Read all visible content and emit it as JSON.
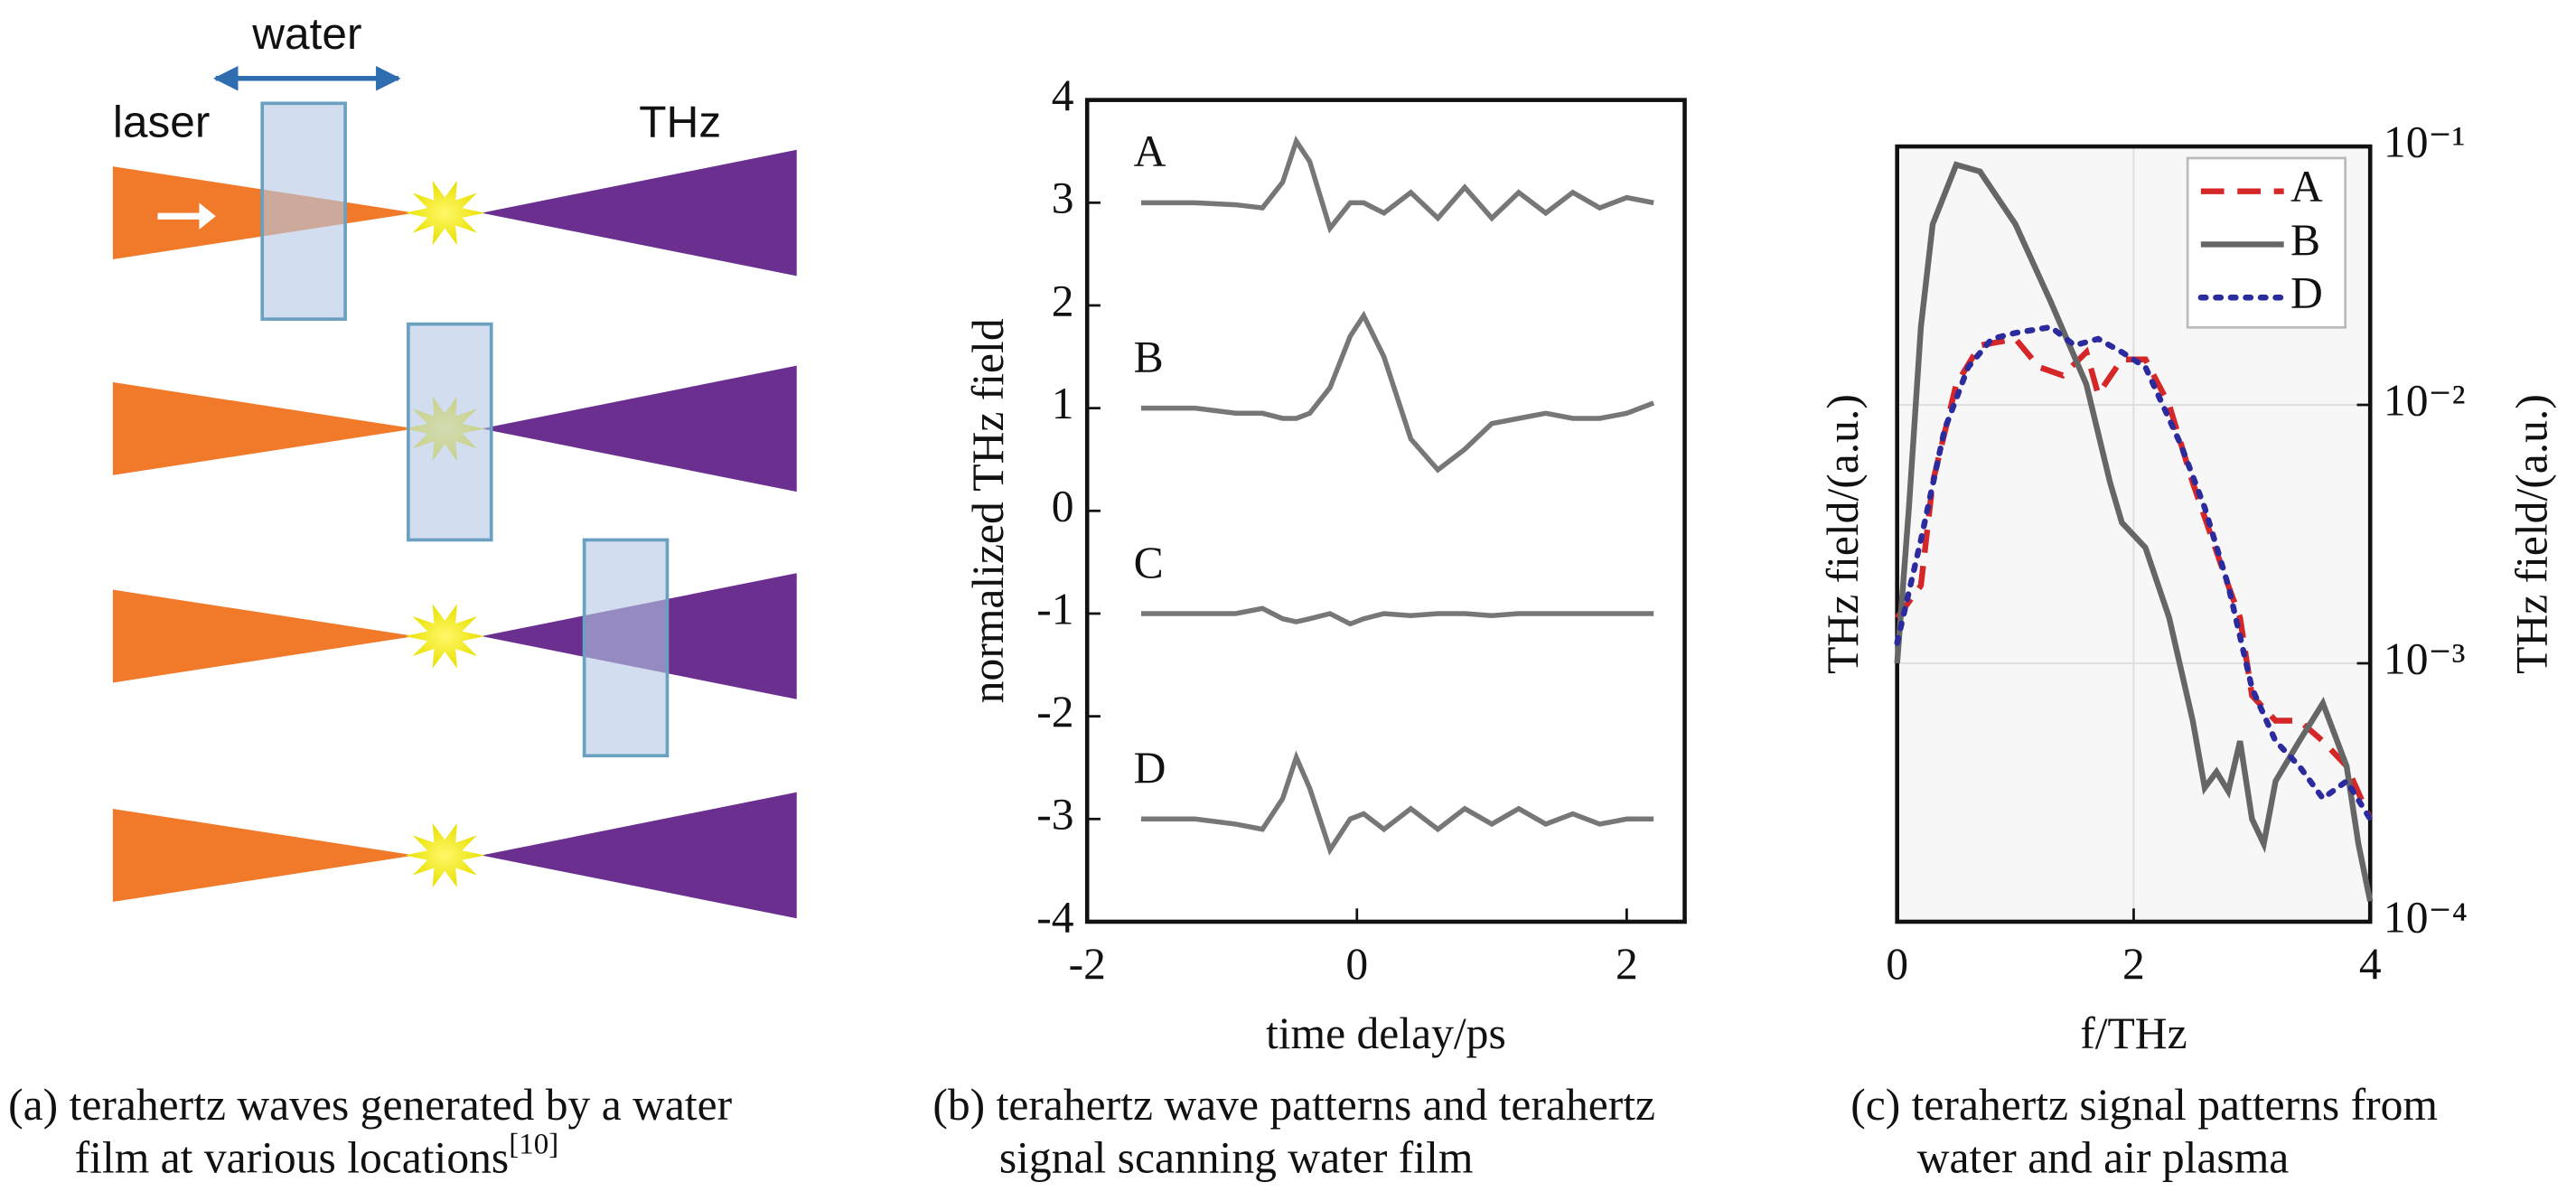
{
  "diagram": {
    "labels": {
      "water": "water",
      "laser": "laser",
      "thz": "THz"
    },
    "caption": [
      "(a) terahertz waves generated by a water",
      "film at various locations"
    ],
    "citation": "[10]"
  },
  "chart_data": [
    {
      "type": "line",
      "caption": [
        "(b) terahertz wave patterns and terahertz",
        "signal scanning water film"
      ],
      "xlabel": "time delay/ps",
      "ylabel": "normalized THz field",
      "xlim": [
        -2,
        2.43
      ],
      "ylim": [
        -4,
        4
      ],
      "xticks": [
        -2,
        0,
        2
      ],
      "yticks": [
        -4,
        -3,
        -2,
        -1,
        0,
        1,
        2,
        3,
        4
      ],
      "grid": false,
      "x": [
        -1.6,
        -1.2,
        -0.9,
        -0.7,
        -0.55,
        -0.45,
        -0.35,
        -0.2,
        -0.05,
        0.05,
        0.2,
        0.4,
        0.6,
        0.8,
        1.0,
        1.2,
        1.4,
        1.6,
        1.8,
        2.0,
        2.2
      ],
      "series": [
        {
          "name": "A",
          "color": "#777777",
          "values": [
            3,
            3,
            2.98,
            2.95,
            3.2,
            3.6,
            3.4,
            2.75,
            3.0,
            3.0,
            2.9,
            3.1,
            2.85,
            3.15,
            2.85,
            3.1,
            2.9,
            3.1,
            2.95,
            3.05,
            3.0
          ]
        },
        {
          "name": "B",
          "color": "#777777",
          "values": [
            1,
            1,
            0.95,
            0.95,
            0.9,
            0.9,
            0.95,
            1.2,
            1.7,
            1.9,
            1.5,
            0.7,
            0.4,
            0.6,
            0.85,
            0.9,
            0.95,
            0.9,
            0.9,
            0.95,
            1.05
          ]
        },
        {
          "name": "C",
          "color": "#777777",
          "values": [
            -1,
            -1,
            -1,
            -0.95,
            -1.05,
            -1.08,
            -1.05,
            -1.0,
            -1.1,
            -1.05,
            -1.0,
            -1.02,
            -1.0,
            -1.0,
            -1.02,
            -1.0,
            -1.0,
            -1.0,
            -1.0,
            -1.0,
            -1.0
          ]
        },
        {
          "name": "D",
          "color": "#777777",
          "values": [
            -3,
            -3,
            -3.05,
            -3.1,
            -2.8,
            -2.4,
            -2.7,
            -3.3,
            -3.0,
            -2.95,
            -3.1,
            -2.9,
            -3.1,
            -2.9,
            -3.05,
            -2.9,
            -3.05,
            -2.95,
            -3.05,
            -3.0,
            -3.0
          ]
        }
      ]
    },
    {
      "type": "line",
      "caption": [
        "(c) terahertz signal patterns from",
        "water and air plasma"
      ],
      "xlabel": "f/THz",
      "ylabel": "THz field/(a.u.)",
      "y2label": "THz field/(a.u.)",
      "xlim": [
        0,
        4
      ],
      "ylim": [
        0.0001,
        0.1
      ],
      "log_y": true,
      "yaxis_side": "right",
      "xticks": [
        0,
        2,
        4
      ],
      "yticks": [
        {
          "value": 0.0001,
          "label": "10⁻⁴"
        },
        {
          "value": 0.001,
          "label": "10⁻³"
        },
        {
          "value": 0.01,
          "label": "10⁻²"
        },
        {
          "value": 0.1,
          "label": "10⁻¹"
        }
      ],
      "grid": true,
      "legend": "upper right",
      "series": [
        {
          "name": "A",
          "color": "#d62728",
          "dash": "dashed",
          "x": [
            0,
            0.2,
            0.3,
            0.5,
            0.7,
            1.0,
            1.2,
            1.4,
            1.6,
            1.7,
            1.9,
            2.1,
            2.3,
            2.5,
            2.8,
            2.9,
            3.0,
            3.2,
            3.4,
            3.6,
            3.8,
            4.0
          ],
          "values": [
            0.0015,
            0.002,
            0.005,
            0.012,
            0.017,
            0.018,
            0.014,
            0.013,
            0.016,
            0.011,
            0.015,
            0.015,
            0.01,
            0.005,
            0.002,
            0.0015,
            0.00075,
            0.0006,
            0.0006,
            0.0005,
            0.0004,
            0.00025
          ]
        },
        {
          "name": "B",
          "color": "#666666",
          "dash": "solid",
          "x": [
            0,
            0.1,
            0.2,
            0.3,
            0.5,
            0.7,
            1.0,
            1.3,
            1.6,
            1.8,
            1.9,
            2.1,
            2.3,
            2.5,
            2.6,
            2.7,
            2.8,
            2.9,
            3.0,
            3.1,
            3.2,
            3.4,
            3.6,
            3.8,
            3.9,
            4.0
          ],
          "values": [
            0.001,
            0.004,
            0.02,
            0.05,
            0.085,
            0.08,
            0.05,
            0.025,
            0.012,
            0.005,
            0.0035,
            0.0028,
            0.0015,
            0.0006,
            0.00033,
            0.00038,
            0.00032,
            0.0005,
            0.00025,
            0.0002,
            0.00035,
            0.0005,
            0.0007,
            0.0004,
            0.0002,
            0.00012
          ]
        },
        {
          "name": "D",
          "color": "#2b2b9e",
          "dash": "dotted",
          "x": [
            0,
            0.2,
            0.4,
            0.6,
            0.8,
            1.0,
            1.3,
            1.5,
            1.7,
            1.9,
            2.1,
            2.4,
            2.6,
            2.8,
            3.0,
            3.2,
            3.4,
            3.6,
            3.8,
            4.0
          ],
          "values": [
            0.0012,
            0.003,
            0.008,
            0.014,
            0.018,
            0.019,
            0.02,
            0.017,
            0.018,
            0.016,
            0.014,
            0.007,
            0.004,
            0.002,
            0.0008,
            0.0005,
            0.0004,
            0.0003,
            0.00035,
            0.00025
          ]
        }
      ]
    }
  ]
}
